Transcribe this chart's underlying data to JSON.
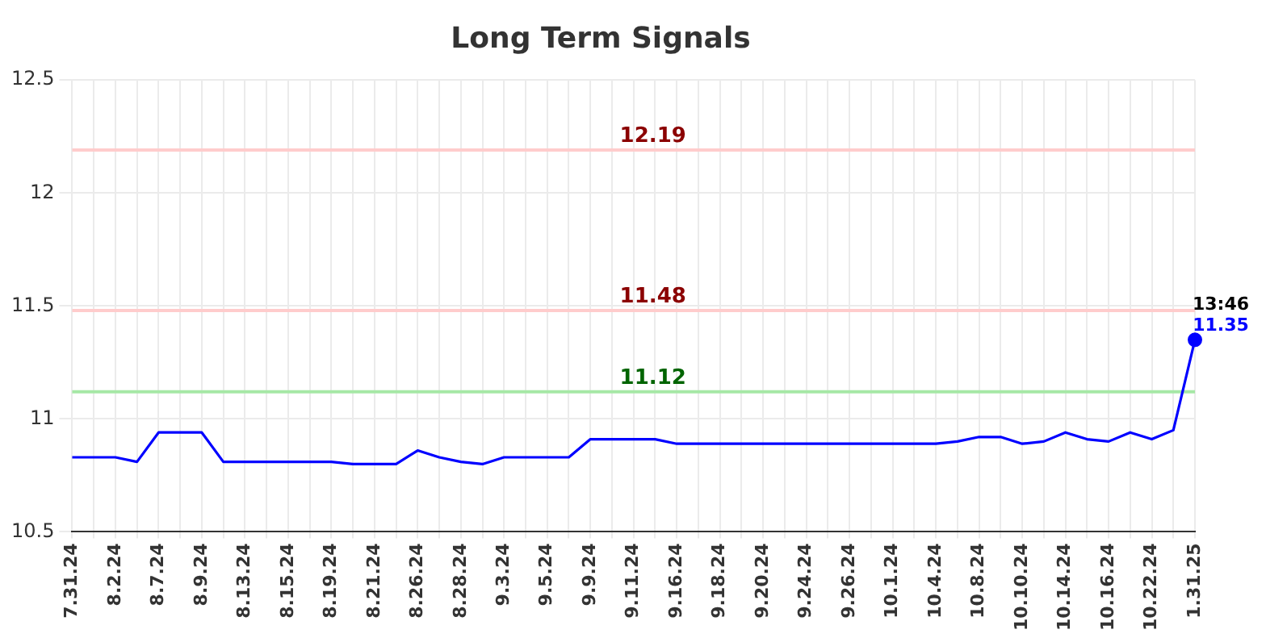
{
  "chart_data": {
    "type": "line",
    "title": "Long Term Signals",
    "categories": [
      "7.31.24",
      null,
      "8.2.24",
      null,
      "8.7.24",
      null,
      "8.9.24",
      null,
      "8.13.24",
      null,
      "8.15.24",
      null,
      "8.19.24",
      null,
      "8.21.24",
      null,
      "8.26.24",
      null,
      "8.28.24",
      null,
      "9.3.24",
      null,
      "9.5.24",
      null,
      "9.9.24",
      null,
      "9.11.24",
      null,
      "9.16.24",
      null,
      "9.18.24",
      null,
      "9.20.24",
      null,
      "9.24.24",
      null,
      "9.26.24",
      null,
      "10.1.24",
      null,
      "10.4.24",
      null,
      "10.8.24",
      null,
      "10.10.24",
      null,
      "10.14.24",
      null,
      "10.16.24",
      null,
      "10.22.24",
      null,
      "1.31.25"
    ],
    "series": [
      {
        "type": "line",
        "color": "#0000ff",
        "values": [
          10.83,
          10.83,
          10.83,
          10.81,
          10.94,
          10.94,
          10.94,
          10.81,
          10.81,
          10.81,
          10.81,
          10.81,
          10.81,
          10.8,
          10.8,
          10.8,
          10.86,
          10.83,
          10.81,
          10.8,
          10.83,
          10.83,
          10.83,
          10.83,
          10.91,
          10.91,
          10.91,
          10.91,
          10.89,
          10.89,
          10.89,
          10.89,
          10.89,
          10.89,
          10.89,
          10.89,
          10.89,
          10.89,
          10.89,
          10.89,
          10.89,
          10.9,
          10.92,
          10.92,
          10.89,
          10.9,
          10.94,
          10.91,
          10.9,
          10.94,
          10.91,
          10.95,
          11.35
        ]
      },
      {
        "type": "scatter",
        "color": "#0000ff",
        "marker": "circle",
        "x": [
          "1.31.25"
        ],
        "values": [
          11.35
        ],
        "value_labels": [
          "11.35"
        ]
      }
    ],
    "ylim": [
      10.5,
      12.5
    ],
    "yticks": [
      10.5,
      11,
      11.5,
      12,
      12.5
    ],
    "grid": true,
    "ref_lines": [
      {
        "axis": "y",
        "value": 12.19,
        "label": "12.19",
        "color": "#ffcccc"
      },
      {
        "axis": "y",
        "value": 11.48,
        "label": "11.48",
        "color": "#ffcccc"
      },
      {
        "axis": "y",
        "value": 11.12,
        "label": "11.12",
        "color": "#a6e8a6"
      }
    ],
    "annotations": [
      {
        "text": "13:46",
        "x": "1.31.25",
        "y": 11.35
      }
    ]
  }
}
